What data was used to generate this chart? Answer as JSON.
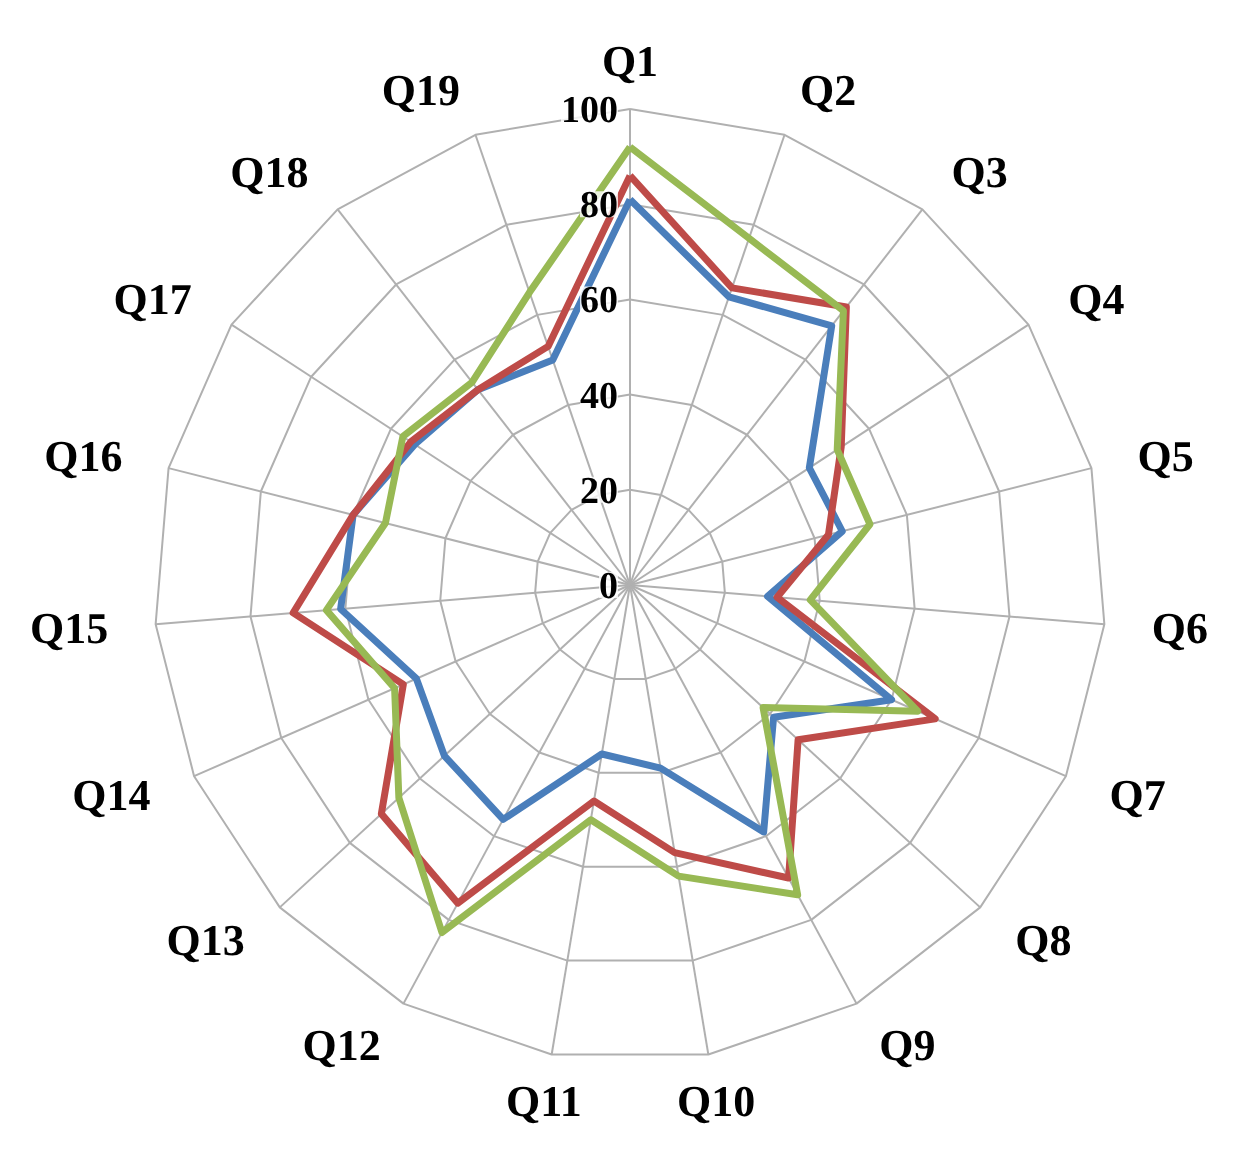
{
  "chart_data": {
    "type": "radar",
    "categories": [
      "Q1",
      "Q2",
      "Q3",
      "Q4",
      "Q5",
      "Q6",
      "Q7",
      "Q8",
      "Q9",
      "Q10",
      "Q11",
      "Q12",
      "Q13",
      "Q14",
      "Q15",
      "Q16",
      "Q17",
      "Q18",
      "Q19"
    ],
    "ylim": [
      0,
      100
    ],
    "yticks": [
      0,
      20,
      40,
      60,
      80,
      100
    ],
    "grid": true,
    "series": [
      {
        "color": "#4a7ebb",
        "values": [
          81,
          64,
          69,
          45,
          46,
          29,
          60,
          41,
          59,
          39,
          36,
          56,
          53,
          49,
          61,
          60,
          54,
          52,
          50
        ]
      },
      {
        "color": "#be4b48",
        "values": [
          86,
          66,
          74,
          53,
          43,
          31,
          70,
          48,
          70,
          57,
          46,
          76,
          71,
          52,
          71,
          60,
          55,
          52,
          53
        ]
      },
      {
        "color": "#98b954",
        "values": [
          92,
          77,
          73,
          52,
          52,
          38,
          66,
          38,
          74,
          62,
          50,
          83,
          66,
          54,
          64,
          53,
          57,
          54,
          65
        ]
      }
    ]
  }
}
